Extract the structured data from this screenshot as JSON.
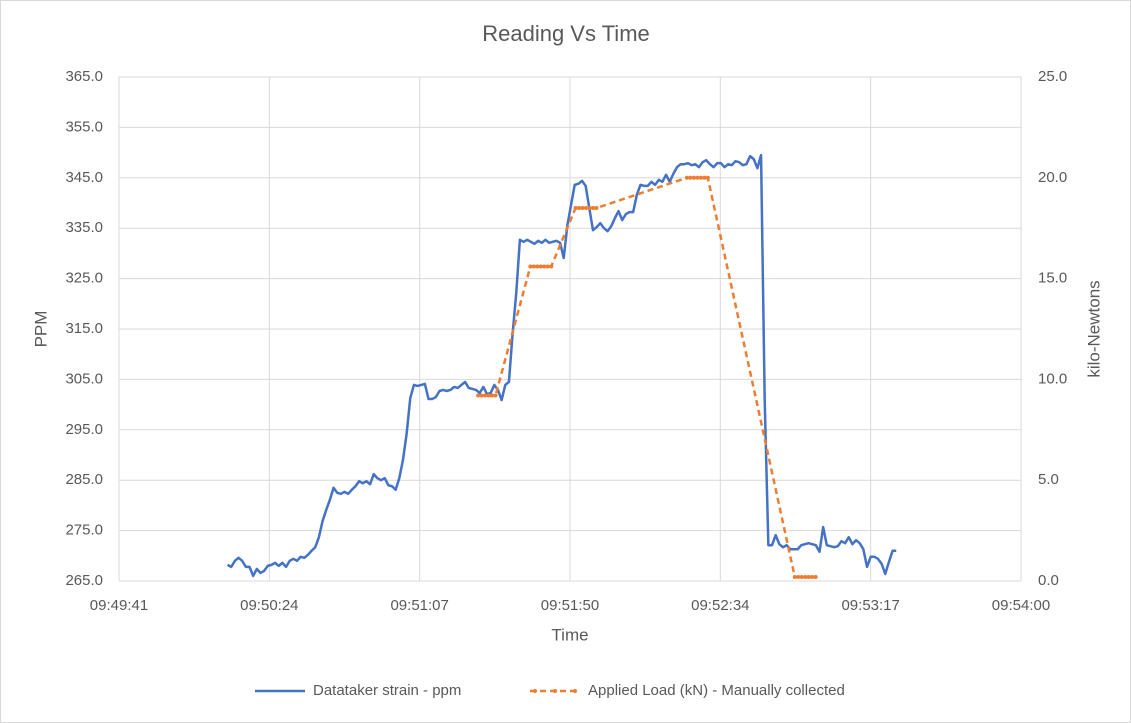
{
  "chart_data": {
    "type": "line",
    "title": "Reading Vs Time",
    "x_label": "Time",
    "y_label": "PPM",
    "y2_label": "kilo-Newtons",
    "legend": "bottom",
    "grid": true,
    "xlim": [
      35380.8,
      35640
    ],
    "xticks": [
      {
        "value": 35380.8,
        "label": "09:49:41"
      },
      {
        "value": 35424,
        "label": "09:50:24"
      },
      {
        "value": 35467.2,
        "label": "09:51:07"
      },
      {
        "value": 35510.4,
        "label": "09:51:50"
      },
      {
        "value": 35553.6,
        "label": "09:52:34"
      },
      {
        "value": 35596.8,
        "label": "09:53:17"
      },
      {
        "value": 35640,
        "label": "09:54:00"
      }
    ],
    "ylim": [
      265,
      365
    ],
    "yticks": [
      {
        "value": 265,
        "label": "265.0"
      },
      {
        "value": 275,
        "label": "275.0"
      },
      {
        "value": 285,
        "label": "285.0"
      },
      {
        "value": 295,
        "label": "295.0"
      },
      {
        "value": 305,
        "label": "305.0"
      },
      {
        "value": 315,
        "label": "315.0"
      },
      {
        "value": 325,
        "label": "325.0"
      },
      {
        "value": 335,
        "label": "335.0"
      },
      {
        "value": 345,
        "label": "345.0"
      },
      {
        "value": 355,
        "label": "355.0"
      },
      {
        "value": 365,
        "label": "365.0"
      }
    ],
    "y2lim": [
      0,
      25
    ],
    "y2ticks": [
      {
        "value": 0,
        "label": "0.0"
      },
      {
        "value": 5,
        "label": "5.0"
      },
      {
        "value": 10,
        "label": "10.0"
      },
      {
        "value": 15,
        "label": "15.0"
      },
      {
        "value": 20,
        "label": "20.0"
      },
      {
        "value": 25,
        "label": "25.0"
      }
    ],
    "series": [
      {
        "name": "Datataker strain - ppm",
        "color": "#4472c4",
        "dashed": false,
        "markers": false,
        "x": [
          35412,
          35413.05,
          35414.1,
          35415.15,
          35416.2,
          35417.25,
          35418.3,
          35419.35,
          35420.4,
          35421.45,
          35422.5,
          35423.55,
          35424.6,
          35425.65,
          35426.7,
          35427.75,
          35428.8,
          35429.85,
          35430.9,
          35431.95,
          35433,
          35434.05,
          35435.1,
          35436.15,
          35437.2,
          35438.25,
          35439.3,
          35440.35,
          35441.4,
          35442.45,
          35443.5,
          35444.55,
          35445.6,
          35446.65,
          35447.7,
          35448.75,
          35449.8,
          35450.85,
          35451.9,
          35452.95,
          35454,
          35455.05,
          35456.1,
          35457.15,
          35458.2,
          35459.25,
          35460.3,
          35461.35,
          35462.4,
          35463.45,
          35464.5,
          35465.55,
          35466.6,
          35467.65,
          35468.7,
          35469.75,
          35470.8,
          35471.85,
          35472.9,
          35473.95,
          35475,
          35476.05,
          35477.1,
          35478.15,
          35479.2,
          35480.25,
          35481.3,
          35482.35,
          35483.4,
          35484.45,
          35485.5,
          35486.55,
          35487.6,
          35488.65,
          35489.7,
          35490.75,
          35491.8,
          35492.85,
          35493.9,
          35494.95,
          35496,
          35497.05,
          35498.1,
          35499.15,
          35500.2,
          35501.25,
          35502.3,
          35503.35,
          35504.4,
          35505.45,
          35506.5,
          35507.55,
          35508.6,
          35509.65,
          35510.7,
          35511.75,
          35512.8,
          35513.85,
          35514.9,
          35515.95,
          35517,
          35518.05,
          35519.1,
          35520.15,
          35521.2,
          35522.25,
          35523.3,
          35524.35,
          35525.4,
          35526.45,
          35527.5,
          35528.55,
          35529.6,
          35530.65,
          35531.7,
          35532.75,
          35533.8,
          35534.85,
          35535.9,
          35536.95,
          35538,
          35539.05,
          35540.1,
          35541.15,
          35542.2,
          35543.25,
          35544.3,
          35545.35,
          35546.4,
          35547.45,
          35548.5,
          35549.55,
          35550.6,
          35551.65,
          35552.7,
          35553.75,
          35554.8,
          35555.85,
          35556.9,
          35557.95,
          35559,
          35560.05,
          35561.1,
          35562.15,
          35563.2,
          35564.25,
          35565.3,
          35566.35,
          35567.4,
          35568.45,
          35569.5,
          35570.55,
          35571.6,
          35572.65,
          35573.7,
          35574.75,
          35575.8,
          35576.85,
          35577.9,
          35578.95,
          35580,
          35581.05,
          35582.1,
          35583.15,
          35584.2,
          35585.25,
          35586.3,
          35587.35,
          35588.4,
          35589.45,
          35590.5,
          35591.55,
          35592.6,
          35593.65,
          35594.7,
          35595.75,
          35596.8,
          35597.85,
          35598.9,
          35599.95,
          35601,
          35602.05,
          35603.1,
          35604.15
        ],
        "values": [
          268.2,
          267.8,
          269.0,
          269.6,
          269.0,
          267.8,
          267.8,
          266.0,
          267.4,
          266.6,
          267.0,
          268.0,
          268.2,
          268.6,
          268.0,
          268.6,
          267.8,
          269.0,
          269.4,
          269.0,
          269.8,
          269.6,
          270.2,
          271.0,
          271.7,
          273.7,
          276.9,
          279.1,
          281.1,
          283.5,
          282.5,
          282.3,
          282.7,
          282.3,
          283.1,
          283.8,
          284.8,
          284.4,
          284.8,
          284.2,
          286.2,
          285.4,
          285.0,
          285.4,
          284.0,
          283.8,
          283.1,
          285.4,
          289.0,
          294.2,
          301.3,
          303.9,
          303.7,
          303.9,
          304.1,
          301.1,
          301.1,
          301.5,
          302.7,
          302.9,
          302.7,
          302.9,
          303.5,
          303.3,
          303.9,
          304.5,
          303.3,
          303.1,
          302.9,
          302.3,
          303.5,
          302.1,
          302.3,
          303.9,
          302.9,
          300.9,
          303.9,
          304.5,
          314.0,
          322.1,
          332.7,
          332.3,
          332.7,
          332.3,
          331.9,
          332.5,
          332.1,
          332.7,
          332.1,
          332.3,
          332.5,
          332.1,
          329.1,
          335.6,
          339.6,
          343.6,
          343.8,
          344.4,
          343.4,
          339.0,
          334.6,
          335.2,
          336.0,
          335.0,
          334.4,
          335.4,
          337.0,
          338.4,
          336.6,
          337.8,
          338.2,
          338.2,
          341.6,
          343.6,
          343.4,
          343.4,
          344.2,
          343.6,
          344.6,
          344.2,
          345.6,
          344.2,
          345.8,
          347.1,
          347.7,
          347.7,
          347.9,
          347.5,
          347.7,
          347.1,
          348.1,
          348.5,
          347.7,
          347.1,
          347.9,
          347.9,
          347.1,
          347.7,
          347.5,
          348.3,
          348.1,
          347.5,
          347.7,
          349.3,
          348.7,
          346.9,
          349.5,
          300.9,
          272.1,
          272.1,
          274.1,
          272.3,
          271.7,
          272.1,
          271.3,
          271.3,
          271.3,
          272.1,
          272.3,
          272.5,
          272.3,
          272.1,
          270.8,
          275.7,
          272.1,
          271.9,
          271.7,
          271.9,
          272.9,
          272.5,
          273.7,
          272.3,
          273.1,
          272.5,
          271.3,
          267.8,
          269.8,
          269.8,
          269.4,
          268.4,
          266.4,
          268.8,
          271.0,
          271.0
        ]
      },
      {
        "name": "Applied Load (kN) - Manually collected",
        "color": "#ed7d31",
        "axis": "y2",
        "dashed": true,
        "markers": true,
        "x": [
          35484,
          35485,
          35486,
          35487,
          35488,
          35489,
          35499,
          35500,
          35501,
          35502,
          35503,
          35504,
          35505,
          35512,
          35513,
          35514,
          35515,
          35516,
          35517,
          35518,
          35544,
          35545,
          35546,
          35547,
          35548,
          35549,
          35550,
          35575,
          35576,
          35577,
          35578,
          35579,
          35580,
          35581
        ],
        "values": [
          9.2,
          9.2,
          9.2,
          9.2,
          9.2,
          9.2,
          15.6,
          15.6,
          15.6,
          15.6,
          15.6,
          15.6,
          15.6,
          18.5,
          18.5,
          18.5,
          18.5,
          18.5,
          18.5,
          18.5,
          20.0,
          20.0,
          20.0,
          20.0,
          20.0,
          20.0,
          20.0,
          0.2,
          0.2,
          0.2,
          0.2,
          0.2,
          0.2,
          0.2
        ]
      }
    ]
  }
}
